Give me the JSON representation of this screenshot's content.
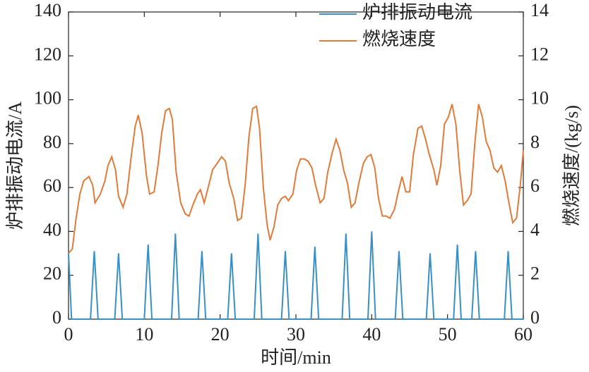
{
  "chart_data": {
    "type": "line",
    "xlabel": "时间/min",
    "ylabel": "炉排振动电流/A",
    "y2label": "燃烧速度/(kg/s)",
    "xlim": [
      0,
      60
    ],
    "xticks": [
      0,
      10,
      20,
      30,
      40,
      50,
      60
    ],
    "ylim": [
      0,
      140
    ],
    "yticks": [
      0,
      20,
      40,
      60,
      80,
      100,
      120,
      140
    ],
    "y2lim": [
      0,
      14
    ],
    "y2ticks": [
      0,
      2,
      4,
      6,
      8,
      10,
      12,
      14
    ],
    "legend": "upper right",
    "series": [
      {
        "name": "炉排振动电流",
        "color": "#3a8fc4",
        "axis": "y",
        "x": [
          0,
          0.4,
          2.9,
          3.4,
          3.9,
          6.1,
          6.6,
          7.1,
          10.0,
          10.5,
          11.0,
          13.6,
          14.1,
          14.6,
          17.1,
          17.6,
          18.1,
          21.0,
          21.5,
          22.0,
          24.5,
          25.0,
          25.5,
          28.1,
          28.6,
          29.1,
          32.0,
          32.5,
          33.0,
          36.1,
          36.6,
          37.1,
          39.5,
          40.0,
          40.5,
          43.1,
          43.6,
          44.1,
          47.2,
          47.7,
          48.2,
          50.8,
          51.3,
          51.8,
          53.2,
          53.7,
          54.2,
          57.5,
          58.0,
          58.5,
          60
        ],
        "values": [
          30,
          0,
          0,
          31,
          0,
          0,
          30,
          0,
          0,
          34,
          0,
          0,
          39,
          0,
          0,
          31,
          0,
          0,
          30,
          0,
          0,
          39,
          0,
          0,
          31,
          0,
          0,
          33,
          0,
          0,
          39,
          0,
          0,
          40,
          0,
          0,
          31,
          0,
          0,
          30,
          0,
          0,
          34,
          0,
          0,
          31,
          0,
          0,
          31,
          0,
          0
        ]
      },
      {
        "name": "燃烧速度",
        "color": "#e07b39",
        "axis": "y2",
        "x": [
          0,
          0.5,
          1,
          1.5,
          2,
          2.7,
          3.2,
          3.5,
          4.2,
          4.8,
          5.2,
          5.7,
          6.2,
          6.6,
          7.2,
          7.7,
          8.3,
          8.8,
          9.2,
          9.7,
          10.3,
          10.7,
          11.3,
          11.8,
          12.3,
          12.8,
          13.3,
          13.7,
          14.2,
          14.8,
          15.4,
          15.9,
          16.4,
          17.0,
          17.4,
          17.9,
          18.5,
          19.0,
          19.6,
          20.2,
          20.7,
          21.2,
          21.8,
          22.3,
          22.8,
          23.3,
          23.8,
          24.3,
          24.8,
          25.2,
          25.7,
          26.2,
          26.6,
          27.1,
          27.6,
          28.1,
          28.6,
          29.0,
          29.6,
          30.1,
          30.6,
          31.1,
          31.6,
          32.1,
          32.6,
          33.2,
          33.7,
          34.2,
          34.8,
          35.3,
          35.8,
          36.3,
          36.8,
          37.3,
          37.8,
          38.3,
          38.9,
          39.4,
          39.9,
          40.4,
          40.9,
          41.4,
          41.9,
          42.4,
          43.0,
          43.5,
          44.0,
          44.5,
          45.0,
          45.5,
          46.1,
          46.6,
          47.1,
          47.6,
          48.2,
          48.6,
          49.1,
          49.6,
          50.1,
          50.6,
          51.1,
          51.6,
          52.1,
          52.6,
          53.1,
          53.6,
          54.1,
          54.6,
          55.1,
          55.6,
          56.1,
          56.6,
          57.1,
          57.6,
          58.1,
          58.6,
          59.1,
          59.6,
          60.0
        ],
        "values": [
          3.0,
          3.2,
          4.6,
          5.7,
          6.3,
          6.5,
          6.1,
          5.3,
          5.7,
          6.3,
          7.0,
          7.4,
          6.8,
          5.6,
          5.1,
          5.7,
          7.5,
          8.8,
          9.3,
          8.5,
          6.5,
          5.7,
          5.8,
          7.0,
          8.5,
          9.5,
          9.6,
          9.1,
          6.7,
          5.3,
          4.8,
          4.7,
          5.2,
          5.7,
          5.9,
          5.3,
          6.1,
          6.8,
          7.1,
          7.4,
          7.2,
          6.2,
          5.5,
          4.5,
          4.6,
          6.1,
          8.3,
          9.6,
          9.7,
          8.7,
          6.0,
          4.3,
          3.6,
          4.2,
          5.2,
          5.5,
          5.6,
          5.4,
          5.7,
          6.8,
          7.3,
          7.3,
          7.2,
          6.9,
          6.1,
          5.3,
          5.5,
          6.7,
          7.6,
          8.2,
          7.7,
          6.8,
          6.2,
          5.1,
          5.3,
          6.2,
          7.1,
          7.4,
          7.5,
          6.9,
          5.5,
          4.7,
          4.7,
          4.6,
          5.0,
          5.8,
          6.5,
          5.8,
          5.8,
          7.5,
          8.7,
          8.8,
          8.2,
          7.5,
          6.8,
          6.1,
          7.0,
          8.9,
          9.2,
          9.8,
          8.9,
          6.8,
          5.2,
          5.4,
          5.7,
          8.0,
          9.8,
          9.2,
          8.1,
          7.7,
          6.9,
          6.7,
          7.0,
          6.3,
          5.3,
          4.4,
          4.6,
          6.1,
          7.7
        ]
      }
    ]
  }
}
